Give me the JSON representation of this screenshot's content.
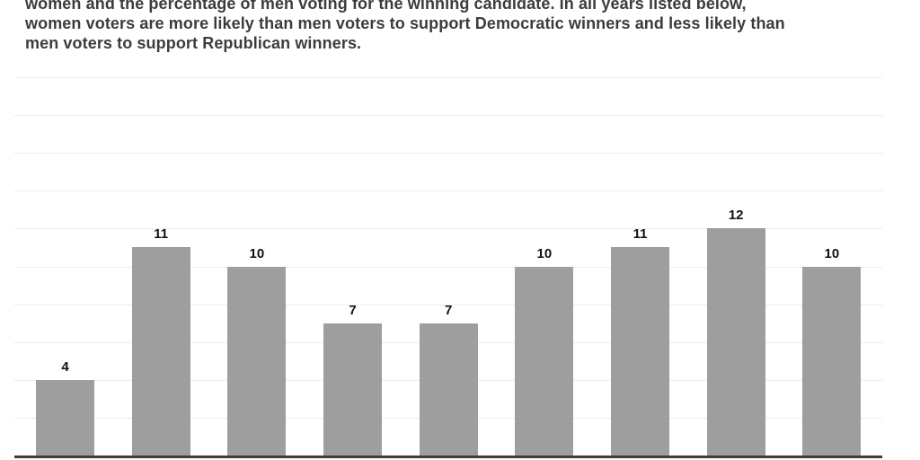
{
  "intro": {
    "lines": [
      "women and the percentage of men voting for the winning candidate. In all years listed below,",
      "women voters are more likely than men voters to support Democratic winners and less likely than",
      "men voters to support Republican winners."
    ],
    "text_color": "#3c3c3c"
  },
  "chart_data": {
    "type": "bar",
    "values": [
      4,
      11,
      10,
      7,
      7,
      10,
      11,
      12,
      10
    ],
    "value_labels": [
      "4",
      "11",
      "10",
      "7",
      "7",
      "10",
      "11",
      "12",
      "10"
    ],
    "title": "",
    "xlabel": "",
    "ylabel": "",
    "ylim": [
      0,
      20
    ],
    "gridline_step": 2,
    "grid": true,
    "legend": "none",
    "x_tick_labels_visible": false,
    "y_tick_labels_visible": false,
    "bar_color": "#9e9e9e",
    "value_label_color": "#111111",
    "gridline_color": "#ececec",
    "axis_color": "#3d3d3d",
    "background_color": "#ffffff"
  }
}
